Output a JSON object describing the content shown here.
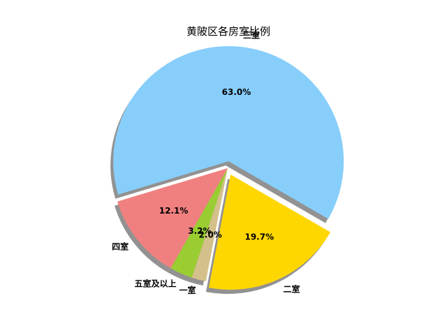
{
  "chart_data": {
    "type": "pie",
    "title": "黄陂区各房室比例",
    "categories": [
      "三室",
      "四室",
      "五室及以上",
      "一室",
      "二室"
    ],
    "values": [
      63.0,
      12.1,
      3.2,
      2.0,
      19.7
    ],
    "labels": [
      "63.0%",
      "12.1%",
      "3.2%",
      "2.0%",
      "19.7%"
    ],
    "colors": [
      "#87CEFA",
      "#F08080",
      "#9ACD32",
      "#D4C08A",
      "#FFD700"
    ],
    "exploded": [
      "三室",
      "二室"
    ],
    "shadow": true,
    "legend": "none"
  }
}
